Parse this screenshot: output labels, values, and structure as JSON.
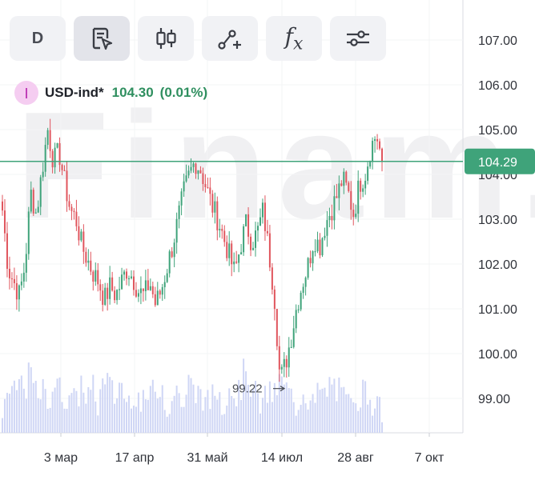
{
  "toolbar": {
    "interval_label": "D",
    "buttons": [
      {
        "name": "interval",
        "icon": "interval-text"
      },
      {
        "name": "chart-type",
        "icon": "document-cursor-icon"
      },
      {
        "name": "candles",
        "icon": "candlestick-icon"
      },
      {
        "name": "drawing",
        "icon": "line-tool-icon"
      },
      {
        "name": "indicators",
        "icon": "fx-icon"
      },
      {
        "name": "settings",
        "icon": "sliders-icon"
      }
    ]
  },
  "legend": {
    "symbol": "USD-ind*",
    "value": "104.30",
    "change": "(0.01%)"
  },
  "watermark": "Finam.",
  "chart_data": {
    "type": "candlestick",
    "symbol": "USD-ind*",
    "interval": "D",
    "y_ticks": [
      "107.00",
      "106.00",
      "105.00",
      "104.00",
      "103.00",
      "102.00",
      "101.00",
      "100.00",
      "99.00"
    ],
    "x_ticks": [
      "3 мар",
      "17 апр",
      "31 май",
      "14 июл",
      "28 авг",
      "7 окт"
    ],
    "ylim": [
      98.2,
      107.8
    ],
    "current_price": "104.29",
    "low_label": "99.22",
    "colors": {
      "up": "#3fa37a",
      "down": "#e0555d",
      "volume": "#cfd6f5",
      "price_line": "#3fa37a"
    },
    "series_key_points": [
      103.2,
      101.9,
      101.6,
      101.3,
      102.0,
      103.6,
      103.1,
      104.1,
      105.0,
      104.3,
      104.5,
      103.8,
      103.2,
      103.0,
      102.4,
      102.1,
      101.8,
      101.6,
      101.2,
      101.5,
      101.3,
      101.6,
      101.9,
      101.7,
      101.4,
      101.3,
      101.6,
      101.1,
      101.4,
      101.9,
      102.4,
      103.0,
      103.6,
      104.0,
      104.3,
      104.1,
      103.7,
      103.3,
      103.0,
      102.6,
      102.2,
      101.8,
      102.4,
      102.9,
      102.5,
      102.7,
      103.2,
      102.3,
      101.3,
      99.4,
      99.8,
      100.4,
      101.1,
      101.6,
      102.0,
      102.6,
      102.4,
      102.9,
      103.2,
      103.5,
      103.9,
      103.6,
      103.1,
      103.8,
      104.0,
      104.6,
      104.9,
      104.3
    ],
    "volume_key_points": [
      0.3,
      0.5,
      0.4,
      0.6,
      0.5,
      0.7,
      0.4,
      0.5,
      0.3,
      0.6,
      0.5,
      0.4,
      0.5,
      0.3,
      0.6,
      0.4,
      0.5,
      0.3,
      0.7,
      0.5,
      0.4,
      0.6,
      0.3,
      0.5,
      0.4,
      0.3,
      0.5,
      0.4,
      0.6,
      0.3,
      0.4,
      0.5,
      0.3,
      0.6,
      0.4,
      0.5,
      0.3,
      0.4,
      0.5,
      0.3,
      0.6,
      0.4,
      0.5,
      0.8,
      0.5,
      0.4,
      0.3,
      0.5,
      0.4,
      0.6,
      0.5,
      0.4,
      0.3,
      0.5,
      0.4,
      0.3,
      0.5,
      0.4,
      0.6,
      0.5,
      0.4,
      0.3,
      0.5,
      0.4,
      0.5,
      0.4,
      0.3,
      0.2
    ],
    "grid": true
  }
}
